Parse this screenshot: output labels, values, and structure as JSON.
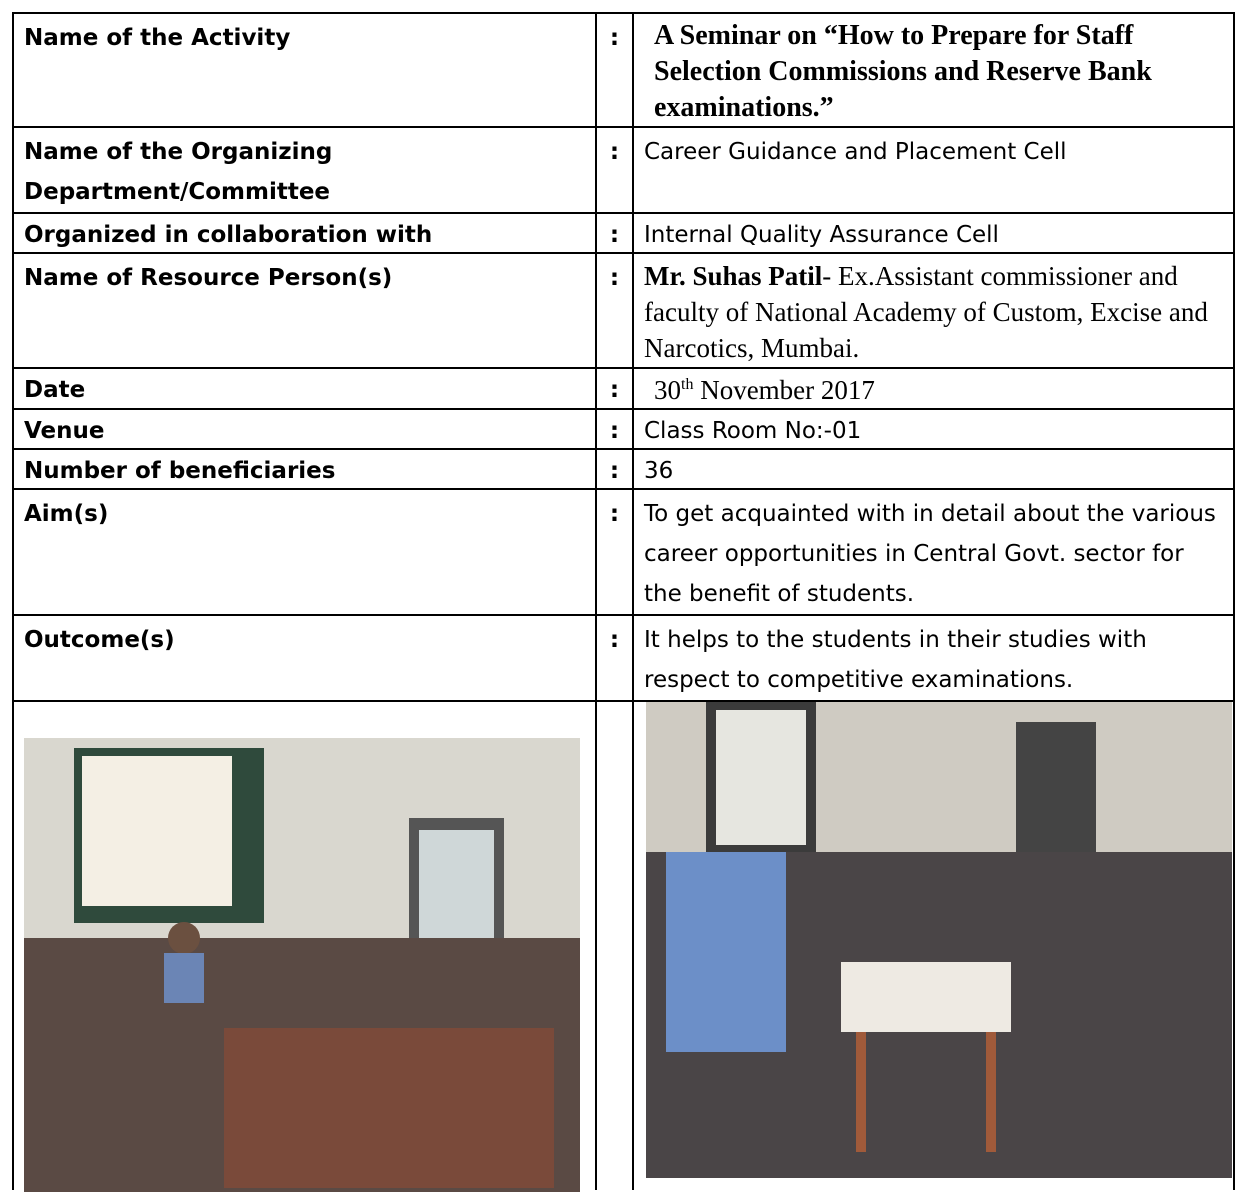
{
  "table": {
    "separator": ":",
    "rows": [
      {
        "label": "Name of the Activity",
        "value": "A Seminar on “How to Prepare for Staff Selection Commissions and Reserve Bank examinations.”"
      },
      {
        "label": "Name of the Organizing Department/Committee",
        "value": "Career Guidance and Placement Cell"
      },
      {
        "label": "Organized in collaboration with",
        "value": "Internal Quality Assurance Cell"
      },
      {
        "label": "Name of Resource Person(s)",
        "name": "Mr. Suhas Patil",
        "value": "- Ex.Assistant commissioner and faculty of National Academy of Custom, Excise and Narcotics, Mumbai."
      },
      {
        "label": "Date",
        "day": "30",
        "suffix": "th",
        "value": " November 2017"
      },
      {
        "label": "Venue",
        "value": "Class Room No:-01"
      },
      {
        "label": "Number of beneficiaries",
        "value": "36"
      },
      {
        "label": "Aim(s)",
        "value": "To get acquainted with in detail about the various career opportunities in Central Govt. sector for the benefit of students."
      },
      {
        "label": "Outcome(s)",
        "value": "It helps to the students in their studies with respect to competitive examinations."
      }
    ]
  }
}
